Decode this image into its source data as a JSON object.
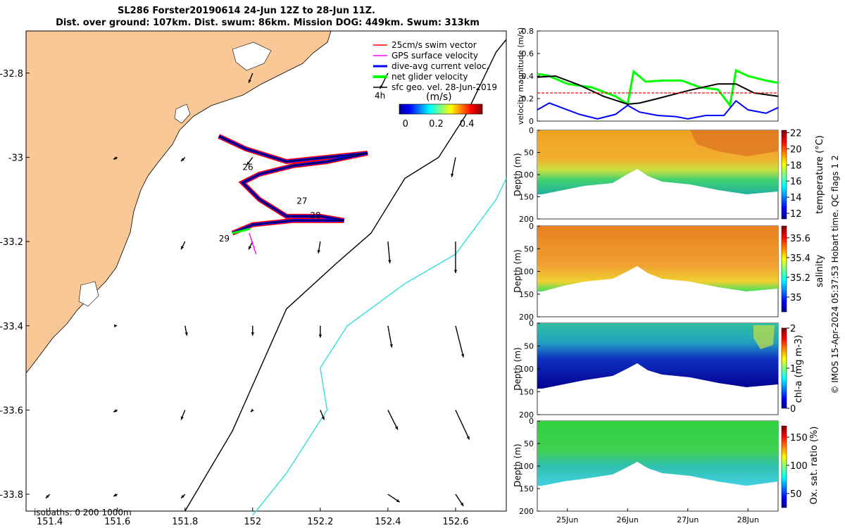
{
  "title": {
    "line1": "SL286 Forster20190614 24-Jun 12Z to 28-Jun 11Z.",
    "line2": "Dist. over ground: 107km. Dist. swum: 86km. Mission DOG: 449km. Swum: 313km"
  },
  "side_note": "© IMOS 15-Apr-2024 05:37:53 Hobart time. QC flags 1  2",
  "colors": {
    "land": "#f9c896",
    "swim_vector": "#ff0000",
    "gps_velocity": "#ff00ff",
    "dive_avg": "#0000ff",
    "net_glider": "#00ff00",
    "sfc_geo": "#000000",
    "isobath_200": "#000000",
    "isobath_1000": "#33dddd"
  },
  "chart_data": [
    {
      "type": "map",
      "panel": "main-map",
      "xlim": [
        151.33,
        152.75
      ],
      "ylim": [
        -33.84,
        -32.7
      ],
      "x_ticks": [
        "151.4",
        "151.6",
        "151.8",
        "152",
        "152.2",
        "152.4",
        "152.6"
      ],
      "x_tick_values": [
        151.4,
        151.6,
        151.8,
        152.0,
        152.2,
        152.4,
        152.6
      ],
      "y_ticks": [
        "-32.8",
        "-33",
        "-33.2",
        "-33.4",
        "-33.6",
        "-33.8"
      ],
      "y_tick_values": [
        -32.8,
        -33.0,
        -33.2,
        -33.4,
        -33.6,
        -33.8
      ],
      "legend": {
        "placement": "top-right",
        "items": [
          {
            "label": "25cm/s swim vector",
            "color": "#ff0000"
          },
          {
            "label": "GPS surface velocity",
            "color": "#ff00ff"
          },
          {
            "label": "dive-avg current veloc.",
            "color": "#0000ff"
          },
          {
            "label": "net glider velocity",
            "color": "#00ff00"
          },
          {
            "label": "sfc geo. vel. 28-Jun-2019",
            "color": "#000000"
          }
        ]
      },
      "colorbar": {
        "title": "(m/s)",
        "ticks": [
          "0",
          "0.2",
          "0.4"
        ],
        "tick_values": [
          0,
          0.2,
          0.4
        ],
        "range": [
          -0.04,
          0.5
        ],
        "colormap": "jet"
      },
      "isobaths_label": "isobaths: 0   200  1000m",
      "corner_label": "4h",
      "day_labels": [
        {
          "text": "26",
          "lon": 151.97,
          "lat": -33.03
        },
        {
          "text": "27",
          "lon": 152.13,
          "lat": -33.11
        },
        {
          "text": "28",
          "lon": 152.17,
          "lat": -33.145
        },
        {
          "text": "29",
          "lon": 151.9,
          "lat": -33.2
        }
      ],
      "glider_track": [
        [
          151.9,
          -32.95
        ],
        [
          151.98,
          -32.98
        ],
        [
          152.1,
          -33.01
        ],
        [
          152.22,
          -33.0
        ],
        [
          152.34,
          -32.99
        ],
        [
          152.22,
          -33.01
        ],
        [
          152.12,
          -33.02
        ],
        [
          152.02,
          -33.04
        ],
        [
          151.97,
          -33.06
        ],
        [
          152.02,
          -33.1
        ],
        [
          152.1,
          -33.14
        ],
        [
          152.2,
          -33.14
        ],
        [
          152.27,
          -33.15
        ],
        [
          152.12,
          -33.15
        ],
        [
          152.0,
          -33.16
        ],
        [
          151.94,
          -33.18
        ]
      ],
      "isobath_200": [
        [
          151.8,
          -33.84
        ],
        [
          151.94,
          -33.65
        ],
        [
          152.1,
          -33.36
        ],
        [
          152.25,
          -33.25
        ],
        [
          152.35,
          -33.18
        ],
        [
          152.45,
          -33.05
        ],
        [
          152.55,
          -33.0
        ],
        [
          152.63,
          -32.9
        ],
        [
          152.72,
          -32.75
        ],
        [
          152.75,
          -32.72
        ]
      ],
      "isobath_1000": [
        [
          152.0,
          -33.85
        ],
        [
          152.1,
          -33.75
        ],
        [
          152.22,
          -33.6
        ],
        [
          152.2,
          -33.5
        ],
        [
          152.28,
          -33.4
        ],
        [
          152.45,
          -33.3
        ],
        [
          152.6,
          -33.23
        ],
        [
          152.72,
          -33.1
        ],
        [
          152.75,
          -33.05
        ]
      ],
      "current_vectors": [
        {
          "lon": 151.4,
          "lat": -33.8,
          "u": -0.02,
          "v": -0.02
        },
        {
          "lon": 151.6,
          "lat": -33.8,
          "u": -0.02,
          "v": -0.01
        },
        {
          "lon": 151.8,
          "lat": -33.8,
          "u": -0.02,
          "v": -0.02
        },
        {
          "lon": 152.4,
          "lat": -33.8,
          "u": 0.06,
          "v": -0.04
        },
        {
          "lon": 152.6,
          "lat": -33.8,
          "u": 0.04,
          "v": -0.06
        },
        {
          "lon": 151.6,
          "lat": -33.6,
          "u": -0.02,
          "v": -0.01
        },
        {
          "lon": 151.8,
          "lat": -33.6,
          "u": -0.02,
          "v": -0.05
        },
        {
          "lon": 152.0,
          "lat": -33.6,
          "u": -0.01,
          "v": -0.01
        },
        {
          "lon": 152.2,
          "lat": -33.6,
          "u": 0.02,
          "v": -0.05
        },
        {
          "lon": 152.4,
          "lat": -33.6,
          "u": 0.05,
          "v": -0.1
        },
        {
          "lon": 152.6,
          "lat": -33.6,
          "u": 0.07,
          "v": -0.15
        },
        {
          "lon": 151.6,
          "lat": -33.4,
          "u": 0.0,
          "v": 0.0
        },
        {
          "lon": 151.8,
          "lat": -33.4,
          "u": 0.01,
          "v": -0.05
        },
        {
          "lon": 152.0,
          "lat": -33.4,
          "u": 0.0,
          "v": -0.05
        },
        {
          "lon": 152.2,
          "lat": -33.4,
          "u": 0.0,
          "v": -0.06
        },
        {
          "lon": 152.4,
          "lat": -33.4,
          "u": 0.02,
          "v": -0.11
        },
        {
          "lon": 152.6,
          "lat": -33.4,
          "u": 0.04,
          "v": -0.16
        },
        {
          "lon": 151.8,
          "lat": -33.2,
          "u": -0.02,
          "v": -0.04
        },
        {
          "lon": 152.0,
          "lat": -33.2,
          "u": -0.02,
          "v": -0.04
        },
        {
          "lon": 152.2,
          "lat": -33.2,
          "u": -0.01,
          "v": -0.06
        },
        {
          "lon": 152.4,
          "lat": -33.2,
          "u": 0.01,
          "v": -0.11
        },
        {
          "lon": 152.6,
          "lat": -33.2,
          "u": 0.0,
          "v": -0.16
        },
        {
          "lon": 151.6,
          "lat": -33.0,
          "u": -0.02,
          "v": -0.01
        },
        {
          "lon": 151.8,
          "lat": -33.0,
          "u": -0.02,
          "v": -0.02
        },
        {
          "lon": 152.0,
          "lat": -33.0,
          "u": -0.03,
          "v": -0.04
        },
        {
          "lon": 152.6,
          "lat": -33.0,
          "u": -0.02,
          "v": -0.1
        },
        {
          "lon": 152.4,
          "lat": -32.8,
          "u": -0.04,
          "v": -0.08
        },
        {
          "lon": 152.0,
          "lat": -32.8,
          "u": -0.02,
          "v": -0.05
        }
      ]
    },
    {
      "type": "line",
      "panel": "velocity",
      "ylabel": "velocity magnitude (m/s)",
      "ylim": [
        0,
        0.8
      ],
      "y_ticks": [
        "0",
        "0.2",
        "0.4",
        "0.6",
        "0.8"
      ],
      "y_tick_values": [
        0,
        0.2,
        0.4,
        0.6,
        0.8
      ],
      "xlim": [
        24.5,
        28.5
      ],
      "series": [
        {
          "color": "#00ff00",
          "x": [
            24.5,
            24.7,
            25.0,
            25.4,
            25.8,
            26.0,
            26.1,
            26.3,
            26.6,
            26.9,
            27.2,
            27.5,
            27.7,
            27.8,
            28.0,
            28.3,
            28.5
          ],
          "values": [
            0.42,
            0.4,
            0.33,
            0.3,
            0.22,
            0.15,
            0.44,
            0.35,
            0.36,
            0.36,
            0.3,
            0.28,
            0.14,
            0.45,
            0.4,
            0.36,
            0.34
          ]
        },
        {
          "color": "#000000",
          "x": [
            24.5,
            24.8,
            25.2,
            25.6,
            26.0,
            26.2,
            26.5,
            27.0,
            27.5,
            27.8,
            28.1,
            28.5
          ],
          "values": [
            0.39,
            0.4,
            0.32,
            0.22,
            0.15,
            0.16,
            0.2,
            0.27,
            0.33,
            0.33,
            0.25,
            0.22
          ]
        },
        {
          "color": "#0000ff",
          "x": [
            24.5,
            24.7,
            24.9,
            25.2,
            25.5,
            25.8,
            26.0,
            26.2,
            26.5,
            26.8,
            27.0,
            27.3,
            27.6,
            27.8,
            28.0,
            28.3,
            28.5
          ],
          "values": [
            0.1,
            0.16,
            0.12,
            0.06,
            0.02,
            0.06,
            0.14,
            0.08,
            0.05,
            0.04,
            0.02,
            0.05,
            0.05,
            0.18,
            0.1,
            0.07,
            0.12
          ]
        },
        {
          "color": "#ff0000",
          "x": [
            24.5,
            28.5
          ],
          "values": [
            0.25,
            0.25
          ]
        }
      ]
    },
    {
      "type": "heatmap",
      "panel": "temperature",
      "ylabel": "Depth (m)",
      "colorbar_label": "temperature (°C)",
      "clim": [
        11.3,
        22.3
      ],
      "colorbar_ticks": [
        "12",
        "14",
        "16",
        "18",
        "20",
        "22"
      ],
      "colorbar_tick_values": [
        12,
        14,
        16,
        18,
        20,
        22
      ],
      "y_ticks": [
        "0",
        "50",
        "100",
        "150",
        "200"
      ],
      "y_tick_values": [
        0,
        50,
        100,
        150,
        200
      ],
      "ylim": [
        200,
        0
      ]
    },
    {
      "type": "heatmap",
      "panel": "salinity",
      "ylabel": "Depth (m)",
      "colorbar_label": "salinity",
      "clim": [
        34.85,
        35.72
      ],
      "colorbar_ticks": [
        "35",
        "35.2",
        "35.4",
        "35.6"
      ],
      "colorbar_tick_values": [
        35.0,
        35.2,
        35.4,
        35.6
      ],
      "y_ticks": [
        "0",
        "50",
        "100",
        "150",
        "200"
      ],
      "y_tick_values": [
        0,
        50,
        100,
        150,
        200
      ],
      "ylim": [
        200,
        0
      ]
    },
    {
      "type": "heatmap",
      "panel": "chl-a",
      "ylabel": "Depth (m)",
      "colorbar_label": "chl-a (mg m-3)",
      "clim": [
        0,
        2
      ],
      "colorbar_ticks": [
        "0",
        "1",
        "2"
      ],
      "colorbar_tick_values": [
        0,
        1,
        2
      ],
      "y_ticks": [
        "0",
        "50",
        "100",
        "150",
        "200"
      ],
      "y_tick_values": [
        0,
        50,
        100,
        150,
        200
      ],
      "ylim": [
        200,
        0
      ]
    },
    {
      "type": "heatmap",
      "panel": "oxygen",
      "ylabel": "Depth (m)",
      "colorbar_label": "Ox. sat. ratio (%)",
      "clim": [
        25,
        170
      ],
      "colorbar_ticks": [
        "50",
        "100",
        "150"
      ],
      "colorbar_tick_values": [
        50,
        100,
        150
      ],
      "y_ticks": [
        "0",
        "50",
        "100",
        "150",
        "200"
      ],
      "y_tick_values": [
        0,
        50,
        100,
        150,
        200
      ],
      "ylim": [
        200,
        0
      ],
      "x_ticks": [
        "25Jun",
        "26Jun",
        "27Jun",
        "28Jun"
      ],
      "x_tick_values": [
        25,
        26,
        27,
        28
      ]
    }
  ]
}
